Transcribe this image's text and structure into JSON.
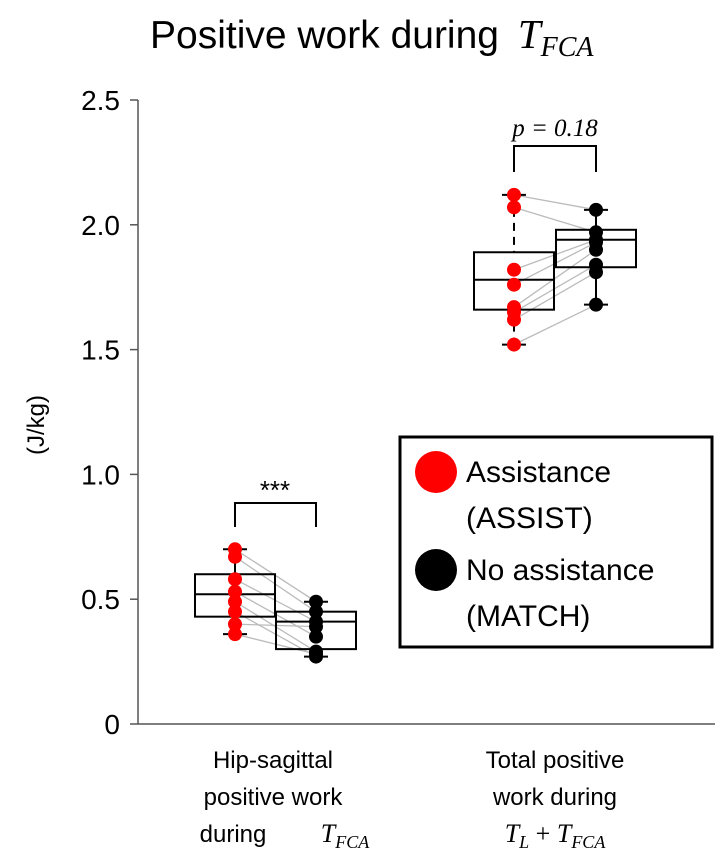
{
  "chart_data": {
    "type": "box",
    "title": "Positive work during",
    "title_italic": "T",
    "title_italic_sub": "FCA",
    "ylabel": "(J/kg)",
    "ylim": [
      0,
      2.5
    ],
    "yticks": [
      0,
      0.5,
      1.0,
      1.5,
      2.0,
      2.5
    ],
    "ytick_labels": [
      "0",
      "0.5",
      "1.0",
      "1.5",
      "2.0",
      "2.5"
    ],
    "groups": [
      {
        "label_lines": [
          "Hip-sagittal",
          "positive work",
          "during"
        ],
        "label_math": "T_FCA",
        "significance": "***",
        "assist": {
          "min": 0.36,
          "q1": 0.43,
          "median": 0.52,
          "q3": 0.6,
          "max": 0.7,
          "points": [
            0.7,
            0.67,
            0.58,
            0.53,
            0.49,
            0.45,
            0.4,
            0.36
          ]
        },
        "match": {
          "min": 0.27,
          "q1": 0.3,
          "median": 0.41,
          "q3": 0.45,
          "max": 0.49,
          "points": [
            0.49,
            0.45,
            0.41,
            0.35,
            0.29,
            0.27,
            0.39,
            0.28
          ]
        }
      },
      {
        "label_lines": [
          "Total positive",
          "work during"
        ],
        "label_math": "T_L + T_FCA",
        "significance": "p = 0.18",
        "assist": {
          "min": 1.52,
          "q1": 1.66,
          "median": 1.78,
          "q3": 1.89,
          "max": 2.12,
          "points": [
            2.12,
            2.07,
            1.82,
            1.76,
            1.67,
            1.65,
            1.62,
            1.52
          ]
        },
        "match": {
          "min": 1.68,
          "q1": 1.83,
          "median": 1.94,
          "q3": 1.98,
          "max": 2.06,
          "points": [
            2.06,
            1.97,
            1.94,
            1.93,
            1.9,
            1.84,
            1.81,
            1.68
          ]
        }
      }
    ],
    "legend": [
      {
        "label_lines": [
          "Assistance",
          "(ASSIST)"
        ],
        "color": "#ff0000"
      },
      {
        "label_lines": [
          "No assistance",
          "(MATCH)"
        ],
        "color": "#000000"
      }
    ],
    "legend_placement": "right",
    "grid": false
  },
  "colors": {
    "assist": "#ff0000",
    "match": "#000000",
    "pair_line": "#bbbbbb",
    "axis": "#555555"
  }
}
